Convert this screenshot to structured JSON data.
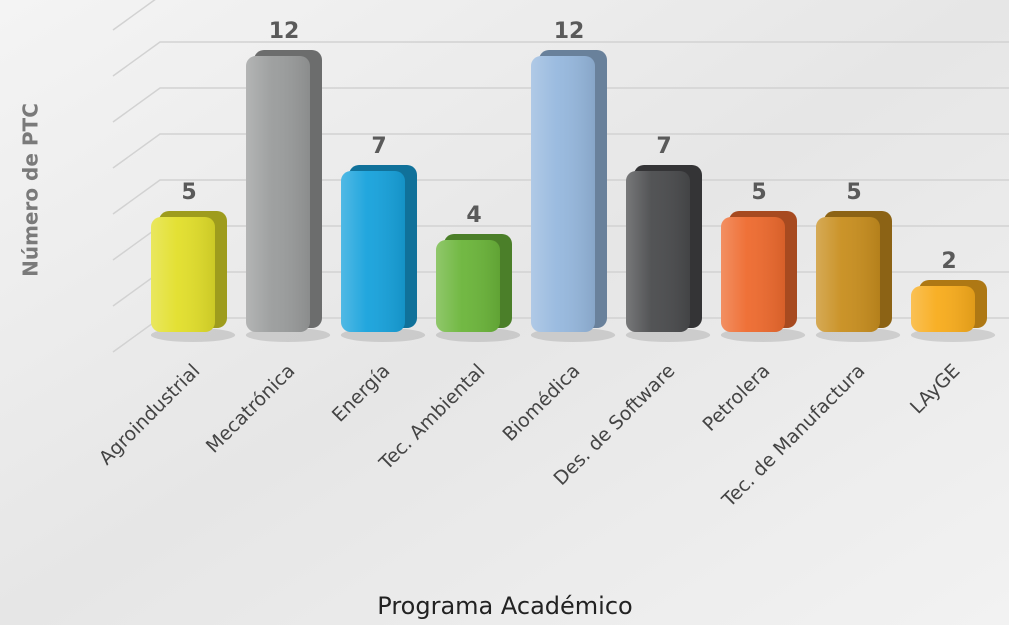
{
  "chart_data": {
    "type": "bar3d",
    "x_label": "Programa Académico",
    "y_label": "Número de PTC",
    "categories": [
      "Agroindustrial",
      "Mecatrónica",
      "Energía",
      "Tec. Ambiental",
      "Biomédica",
      "Des. de Software",
      "Petrolera",
      "Tec. de Manufactura",
      "LAyGE"
    ],
    "values": [
      5,
      12,
      7,
      4,
      12,
      7,
      5,
      5,
      2
    ],
    "colors": [
      "#e2df2a",
      "#9a9c9c",
      "#17a2dc",
      "#6bb53a",
      "#96b8de",
      "#4a4b4d",
      "#ee6a2e",
      "#c88e1e",
      "#f8ac1c"
    ],
    "ylim": [
      0,
      14
    ],
    "yticks": [
      0,
      2,
      4,
      6,
      8,
      10,
      12,
      14
    ],
    "grid": true
  }
}
